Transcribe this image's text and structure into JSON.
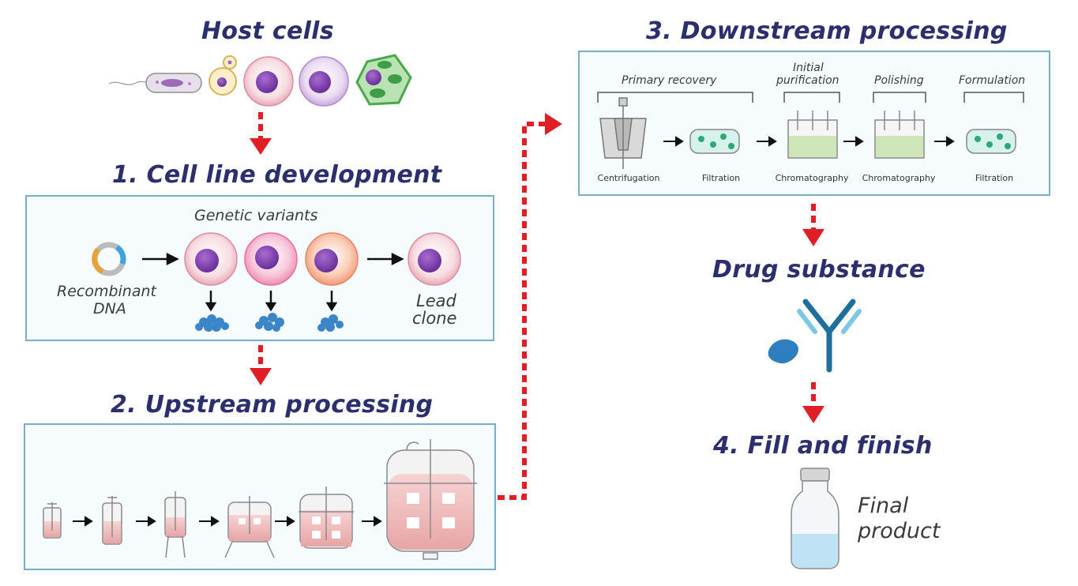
{
  "sections": {
    "host_cells": "Host cells",
    "cell_line": "1. Cell line development",
    "upstream": "2. Upstream processing",
    "downstream": "3. Downstream processing",
    "drug_substance": "Drug substance",
    "fill_finish": "4. Fill and finish"
  },
  "cell_line": {
    "genetic_variants": "Genetic variants",
    "recombinant_dna": [
      "Recombinant",
      "DNA"
    ],
    "lead_clone": [
      "Lead",
      "clone"
    ]
  },
  "downstream": {
    "stages": [
      "Primary recovery",
      "Initial",
      "purification",
      "Polishing",
      "Formulation"
    ],
    "steps": [
      "Centrifugation",
      "Filtration",
      "Chromatography",
      "Chromatography",
      "Filtration"
    ]
  },
  "final_product": [
    "Final",
    "product"
  ],
  "colors": {
    "title": "#2b2f6e",
    "arrow_red": "#e01e26",
    "box_border": "#79aecb",
    "antibody": "#1f6f9c"
  }
}
